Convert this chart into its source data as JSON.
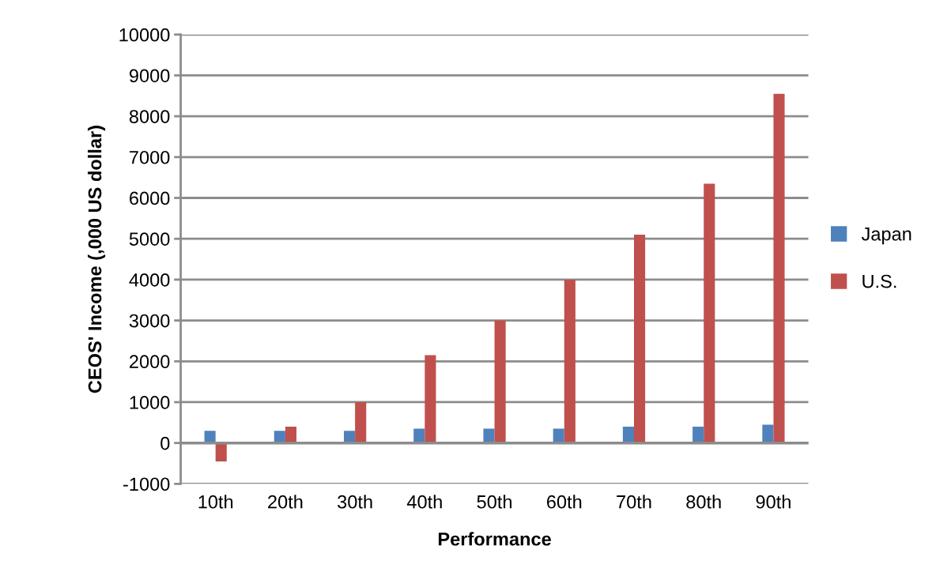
{
  "chart_data": {
    "type": "bar",
    "xlabel": "Performance",
    "ylabel": "CEOS' Income (,000 US dollar)",
    "categories": [
      "10th",
      "20th",
      "30th",
      "40th",
      "50th",
      "60th",
      "70th",
      "80th",
      "90th"
    ],
    "series": [
      {
        "name": "Japan",
        "color": "#4f81bd",
        "values": [
          300,
          300,
          300,
          350,
          350,
          350,
          400,
          400,
          450
        ]
      },
      {
        "name": "U.S.",
        "color": "#c0504d",
        "values": [
          -450,
          400,
          1000,
          2150,
          3000,
          4000,
          5100,
          6350,
          8550
        ]
      }
    ],
    "ylim": [
      -1000,
      10000
    ],
    "yticks": [
      -1000,
      0,
      1000,
      2000,
      3000,
      4000,
      5000,
      6000,
      7000,
      8000,
      9000,
      10000
    ],
    "grid": "y",
    "legend": "right"
  }
}
